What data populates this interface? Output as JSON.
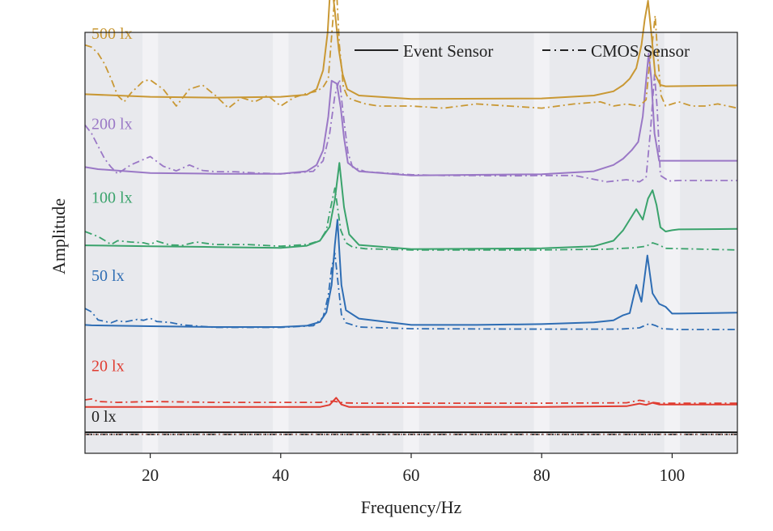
{
  "chart_data": {
    "type": "line",
    "title": "",
    "xlabel": "Frequency/Hz",
    "ylabel": "Amplitude",
    "xlim": [
      10,
      110
    ],
    "xticks": [
      20,
      40,
      60,
      80,
      100
    ],
    "ylim": [
      0,
      100
    ],
    "y_ticks_shown": false,
    "grid": "vertical bands",
    "legend": {
      "position": "top-right",
      "entries": [
        {
          "label": "Event Sensor",
          "style": "solid"
        },
        {
          "label": "CMOS Sensor",
          "style": "dash-dot"
        }
      ]
    },
    "series": [
      {
        "name": "0 lx",
        "label": "0 lx",
        "color": "#222222",
        "event": {
          "x": [
            10,
            110
          ],
          "y": [
            5.0,
            5.0
          ]
        },
        "cmos": {
          "x": [
            10,
            110
          ],
          "y": [
            4.5,
            4.5
          ]
        },
        "cmos_overlay_color": "#9c6a62"
      },
      {
        "name": "20 lx",
        "label": "20 lx",
        "color": "#e03c31",
        "event": {
          "x": [
            10,
            46,
            47.5,
            48.5,
            49.3,
            50.5,
            60,
            80,
            93,
            95,
            96,
            97,
            98,
            110
          ],
          "y": [
            11.0,
            11.0,
            11.5,
            13.2,
            11.6,
            11.0,
            11.0,
            11.0,
            11.2,
            11.8,
            11.5,
            12.0,
            11.6,
            11.6
          ]
        },
        "cmos": {
          "x": [
            10,
            11,
            12,
            15,
            20,
            30,
            40,
            46,
            48,
            49.5,
            52,
            60,
            80,
            93,
            95,
            96.5,
            98,
            110
          ],
          "y": [
            12.7,
            12.9,
            12.3,
            12.1,
            12.3,
            12.1,
            12.1,
            12.1,
            12.4,
            12.0,
            11.9,
            11.9,
            11.9,
            12.0,
            12.6,
            12.2,
            11.9,
            11.9
          ]
        }
      },
      {
        "name": "50 lx",
        "label": "50 lx",
        "color": "#2e6db4",
        "event": {
          "x": [
            10,
            11,
            20,
            30,
            40,
            44,
            46,
            47,
            47.8,
            48.3,
            48.7,
            49.3,
            50,
            52,
            60,
            70,
            80,
            88,
            91,
            92.5,
            93.5,
            94.5,
            95.3,
            96.2,
            97,
            98,
            99,
            100,
            101,
            110
          ],
          "y": [
            30.5,
            30.4,
            30.2,
            30.0,
            30.0,
            30.3,
            31.2,
            33.5,
            40.0,
            49.5,
            55.5,
            40.0,
            34.0,
            32.0,
            30.5,
            30.5,
            30.7,
            31.1,
            31.6,
            32.8,
            33.3,
            40.0,
            36.0,
            47.0,
            38.0,
            35.5,
            34.8,
            33.2,
            33.2,
            33.4
          ]
        },
        "cmos": {
          "x": [
            10,
            11,
            12,
            14,
            15,
            16,
            18,
            19,
            20,
            21,
            23,
            25,
            30,
            40,
            45,
            46.5,
            47.3,
            47.8,
            48.3,
            49.3,
            50,
            51,
            52,
            60,
            80,
            92,
            95,
            96.5,
            97.5,
            98.5,
            101,
            110
          ],
          "y": [
            34.4,
            33.6,
            31.7,
            31.0,
            31.6,
            31.2,
            31.8,
            31.6,
            32.1,
            31.3,
            31.1,
            30.5,
            29.9,
            29.9,
            30.3,
            32.3,
            37.5,
            44.0,
            47.5,
            33.0,
            31.0,
            30.5,
            30.0,
            29.6,
            29.5,
            29.5,
            29.8,
            30.8,
            30.3,
            29.6,
            29.4,
            29.4
          ]
        }
      },
      {
        "name": "100 lx",
        "label": "100 lx",
        "color": "#3aa36c",
        "event": {
          "x": [
            10,
            20,
            30,
            40,
            44,
            46,
            47.5,
            48.3,
            49,
            49.7,
            50.5,
            52,
            60,
            80,
            88,
            91,
            92.5,
            93.5,
            94.5,
            95.5,
            96.3,
            97,
            97.6,
            98.2,
            99,
            100,
            101,
            110
          ],
          "y": [
            49.4,
            49.2,
            49.0,
            48.8,
            49.3,
            50.5,
            53.8,
            60.3,
            69.0,
            58.5,
            52.0,
            49.5,
            48.5,
            48.7,
            49.2,
            50.5,
            53.0,
            55.5,
            58.0,
            55.5,
            60.5,
            62.5,
            59.0,
            53.7,
            52.7,
            53.0,
            53.2,
            53.3
          ]
        },
        "cmos": {
          "x": [
            10,
            11,
            12,
            13,
            14,
            15,
            17,
            19,
            20,
            21,
            23,
            25,
            27,
            30,
            35,
            40,
            44,
            46,
            47,
            47.6,
            48.3,
            49.2,
            50,
            51,
            53,
            60,
            80,
            90,
            94,
            96,
            97,
            98,
            99,
            110
          ],
          "y": [
            52.7,
            52.1,
            51.5,
            50.6,
            49.6,
            50.5,
            50.2,
            50.0,
            49.6,
            50.4,
            49.5,
            49.4,
            50.2,
            49.6,
            49.6,
            49.2,
            49.6,
            50.5,
            53.0,
            58.0,
            63.0,
            53.0,
            50.0,
            49.0,
            48.6,
            48.3,
            48.3,
            48.5,
            48.8,
            49.2,
            50.0,
            49.5,
            48.7,
            48.3
          ]
        }
      },
      {
        "name": "200 lx",
        "label": "200 lx",
        "color": "#9a78c6",
        "event": {
          "x": [
            10,
            12,
            20,
            30,
            40,
            44,
            45.5,
            46.5,
            47.3,
            47.8,
            48.6,
            49.2,
            49.7,
            50.3,
            52,
            60,
            80,
            88,
            91,
            92.5,
            93.8,
            94.8,
            95.5,
            96,
            96.4,
            96.8,
            97.3,
            98,
            110
          ],
          "y": [
            68.0,
            67.5,
            66.6,
            66.4,
            66.4,
            67.0,
            68.5,
            72.0,
            80.0,
            88.5,
            87.8,
            82.0,
            75.0,
            69.0,
            67.0,
            66.0,
            66.3,
            67.0,
            68.5,
            70.0,
            72.0,
            74.0,
            80.0,
            88.5,
            95.0,
            89.0,
            76.0,
            69.5,
            69.5
          ]
        },
        "cmos": {
          "x": [
            10,
            11,
            12,
            13,
            14,
            15,
            17,
            20,
            22,
            24,
            26,
            28,
            30,
            33,
            36,
            40,
            43,
            45,
            46.5,
            47.5,
            48.3,
            49,
            49.7,
            50.3,
            51,
            53,
            55,
            60,
            65,
            70,
            75,
            80,
            85,
            90,
            93,
            95,
            96,
            96.7,
            97.3,
            97.7,
            98.2,
            99.5,
            101,
            110
          ],
          "y": [
            78.0,
            76.0,
            73.0,
            70.0,
            68.0,
            66.4,
            68.5,
            70.5,
            68.2,
            67.1,
            68.5,
            67.2,
            66.9,
            66.9,
            66.6,
            66.4,
            66.7,
            67.0,
            69.5,
            76.0,
            85.0,
            88.8,
            79.0,
            71.5,
            68.0,
            66.9,
            66.7,
            66.2,
            66.0,
            66.0,
            65.9,
            66.0,
            66.0,
            64.5,
            65.0,
            64.5,
            65.5,
            77.0,
            90.0,
            82.0,
            66.0,
            64.7,
            64.8,
            64.8
          ]
        }
      },
      {
        "name": "500 lx",
        "label": "500 lx",
        "color": "#c99834",
        "event": {
          "x": [
            10,
            15,
            20,
            30,
            40,
            44,
            45.5,
            46.5,
            47.2,
            47.7,
            48.3,
            48.9,
            49.5,
            50.2,
            52,
            60,
            80,
            88,
            91,
            92.5,
            93.5,
            94.5,
            95.3,
            95.8,
            96.3,
            96.8,
            97.4,
            98.2,
            99,
            110
          ],
          "y": [
            85.3,
            85.0,
            84.7,
            84.5,
            84.7,
            85.2,
            86.5,
            91.0,
            100.0,
            113.3,
            105.0,
            96.0,
            90.0,
            86.5,
            85.0,
            84.2,
            84.3,
            85.0,
            86.0,
            87.5,
            89.0,
            91.5,
            97.0,
            103.0,
            107.5,
            100.0,
            90.0,
            87.5,
            87.2,
            87.4
          ]
        },
        "cmos": {
          "x": [
            10,
            11,
            12,
            13,
            14,
            15,
            16,
            17,
            19,
            20,
            22,
            24,
            26,
            28,
            30,
            32,
            34,
            36,
            38,
            40,
            42,
            44,
            45.5,
            46.5,
            47.3,
            48.1,
            48.5,
            49,
            49.6,
            50.3,
            51,
            53,
            55,
            60,
            65,
            70,
            75,
            80,
            85,
            89,
            91,
            93,
            95,
            96,
            96.5,
            97,
            97.4,
            97.8,
            98.3,
            99,
            101,
            103,
            105,
            107,
            110
          ],
          "y": [
            97.0,
            96.5,
            95.0,
            92.5,
            89.0,
            85.0,
            83.5,
            85.5,
            88.5,
            88.7,
            86.5,
            82.5,
            86.5,
            87.5,
            85.0,
            82.0,
            84.5,
            83.5,
            85.0,
            82.5,
            84.5,
            85.5,
            86.0,
            87.0,
            89.0,
            105.0,
            112.0,
            97.0,
            87.0,
            84.5,
            84.0,
            83.0,
            82.5,
            82.5,
            82.0,
            83.0,
            82.5,
            82.0,
            83.0,
            83.5,
            82.5,
            83.0,
            82.5,
            84.0,
            92.0,
            98.0,
            104.0,
            94.0,
            85.0,
            82.5,
            83.5,
            82.5,
            82.5,
            83.0,
            82.0
          ]
        }
      }
    ],
    "label_positions_data": [
      {
        "series": "500 lx",
        "x": 11.0,
        "y": 98.5
      },
      {
        "series": "200 lx",
        "x": 11.0,
        "y": 77.0
      },
      {
        "series": "100 lx",
        "x": 11.0,
        "y": 59.5
      },
      {
        "series": "50 lx",
        "x": 11.0,
        "y": 41.0
      },
      {
        "series": "20 lx",
        "x": 11.0,
        "y": 19.5
      },
      {
        "series": "0 lx",
        "x": 11.0,
        "y": 7.5
      }
    ]
  }
}
